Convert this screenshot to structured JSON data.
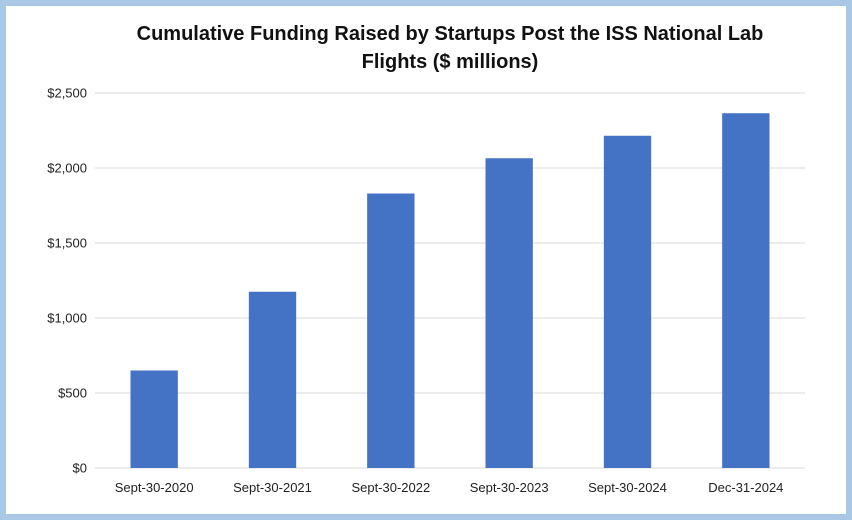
{
  "chart_data": {
    "type": "bar",
    "title": "Cumulative Funding Raised by Startups Post the ISS National Lab Flights ($ millions)",
    "categories": [
      "Sept-30-2020",
      "Sept-30-2021",
      "Sept-30-2022",
      "Sept-30-2023",
      "Sept-30-2024",
      "Dec-31-2024"
    ],
    "values": [
      650,
      1175,
      1830,
      2065,
      2215,
      2365
    ],
    "ylim": [
      0,
      2500
    ],
    "y_ticks": [
      0,
      500,
      1000,
      1500,
      2000,
      2500
    ],
    "y_tick_labels": [
      "$0",
      "$500",
      "$1,000",
      "$1,500",
      "$2,000",
      "$2,500"
    ],
    "xlabel": "",
    "ylabel": "",
    "grid": true,
    "legend": "none",
    "colors": {
      "bar": "#4472c4",
      "grid": "#d9d9d9",
      "frame": "#a9c8e6"
    }
  }
}
